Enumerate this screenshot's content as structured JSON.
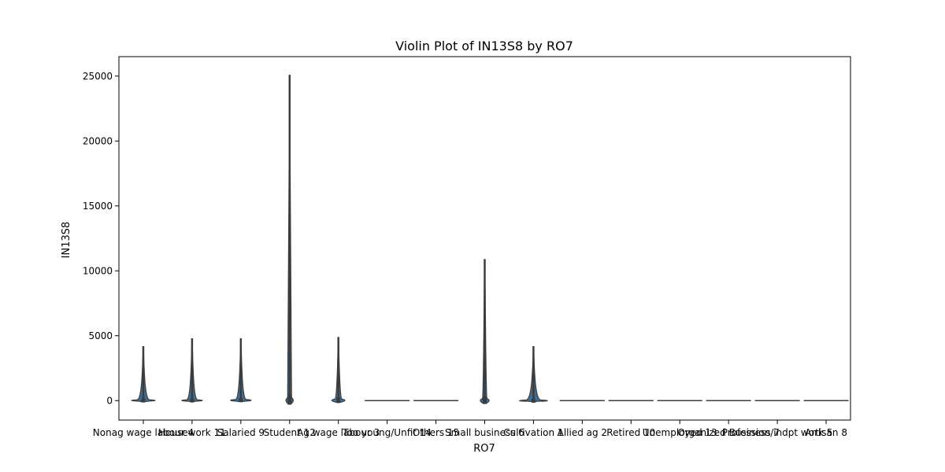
{
  "chart_data": {
    "type": "violin",
    "title": "Violin Plot of IN13S8 by RO7",
    "xlabel": "RO7",
    "ylabel": "IN13S8",
    "ylim": [
      -1500,
      26500
    ],
    "yticks": [
      0,
      5000,
      10000,
      15000,
      20000,
      25000
    ],
    "grid": false,
    "violin_color": "#3a6e96",
    "edge_color": "#3c3c3c",
    "categories": [
      "Nonag wage labour 4",
      "Housework 11",
      "Salaried 9",
      "Student 12",
      "Ag wage labour 3",
      "Too young/Unfit 14",
      "Others 15",
      "Small business 6",
      "Cultivation 1",
      "Allied ag 2",
      "Retired 10",
      "Unemployed 13",
      "Organized Business 7",
      "Profession/indpt work 5",
      "Artisan 8"
    ],
    "violins": [
      {
        "min": 0,
        "max": 4200,
        "body_top": 100,
        "body_bottom": -50,
        "width": 0.8
      },
      {
        "min": 0,
        "max": 4800,
        "body_top": 100,
        "body_bottom": -50,
        "width": 0.7
      },
      {
        "min": 0,
        "max": 4800,
        "body_top": 120,
        "body_bottom": -50,
        "width": 0.7
      },
      {
        "min": 0,
        "max": 25100,
        "body_top": 350,
        "body_bottom": -250,
        "width": 0.25
      },
      {
        "min": 0,
        "max": 4900,
        "body_top": 180,
        "body_bottom": -120,
        "width": 0.45
      },
      {
        "min": 0,
        "max": 0,
        "body_top": 0,
        "body_bottom": 0,
        "width": 1.0
      },
      {
        "min": 0,
        "max": 0,
        "body_top": 0,
        "body_bottom": 0,
        "width": 1.0
      },
      {
        "min": 0,
        "max": 10900,
        "body_top": 250,
        "body_bottom": -200,
        "width": 0.3
      },
      {
        "min": 0,
        "max": 4200,
        "body_top": 80,
        "body_bottom": -50,
        "width": 0.95
      },
      {
        "min": 0,
        "max": 0,
        "body_top": 0,
        "body_bottom": 0,
        "width": 1.0
      },
      {
        "min": 0,
        "max": 0,
        "body_top": 0,
        "body_bottom": 0,
        "width": 1.0
      },
      {
        "min": 0,
        "max": 0,
        "body_top": 0,
        "body_bottom": 0,
        "width": 1.0
      },
      {
        "min": 0,
        "max": 0,
        "body_top": 0,
        "body_bottom": 0,
        "width": 1.0
      },
      {
        "min": 0,
        "max": 0,
        "body_top": 0,
        "body_bottom": 0,
        "width": 1.0
      },
      {
        "min": 0,
        "max": 0,
        "body_top": 0,
        "body_bottom": 0,
        "width": 1.0
      }
    ]
  }
}
